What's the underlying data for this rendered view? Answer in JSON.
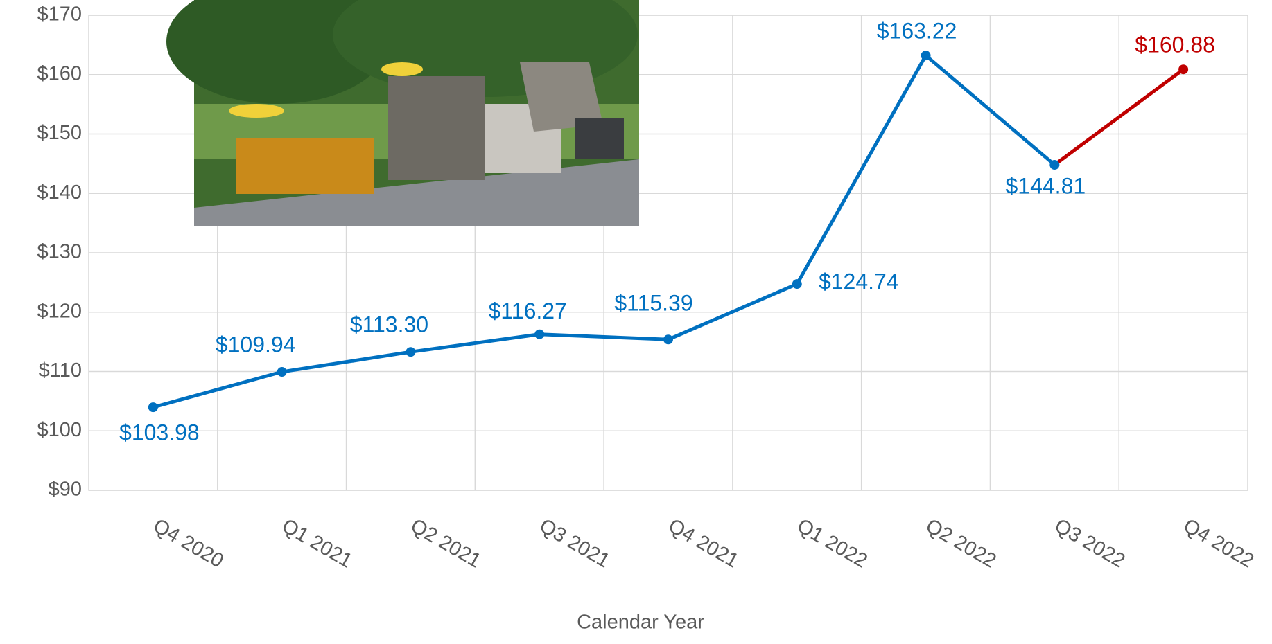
{
  "chart_data": {
    "type": "line",
    "x_label": "Calendar Year",
    "categories": [
      "Q4 2020",
      "Q1 2021",
      "Q2 2021",
      "Q3 2021",
      "Q4 2021",
      "Q1 2022",
      "Q2 2022",
      "Q3 2022",
      "Q4 2022"
    ],
    "series": [
      {
        "color": "#0070c0",
        "point_colors": [
          "#0070c0",
          "#0070c0",
          "#0070c0",
          "#0070c0",
          "#0070c0",
          "#0070c0",
          "#0070c0",
          "#0070c0",
          "#c00000"
        ],
        "values": [
          103.98,
          109.94,
          113.3,
          116.27,
          115.39,
          124.74,
          163.22,
          144.81,
          160.88
        ],
        "value_labels": [
          "$103.98",
          "$109.94",
          "$113.30",
          "$116.27",
          "$115.39",
          "$124.74",
          "$163.22",
          "$144.81",
          "$160.88"
        ]
      }
    ],
    "ylim": [
      90,
      170
    ],
    "yticks": [
      {
        "value": 90,
        "label": "$90"
      },
      {
        "value": 100,
        "label": "$100"
      },
      {
        "value": 110,
        "label": "$110"
      },
      {
        "value": 120,
        "label": "$120"
      },
      {
        "value": 130,
        "label": "$130"
      },
      {
        "value": 140,
        "label": "$140"
      },
      {
        "value": 150,
        "label": "$150"
      },
      {
        "value": 160,
        "label": "$160"
      },
      {
        "value": 170,
        "label": "$170"
      }
    ],
    "grid": true
  }
}
